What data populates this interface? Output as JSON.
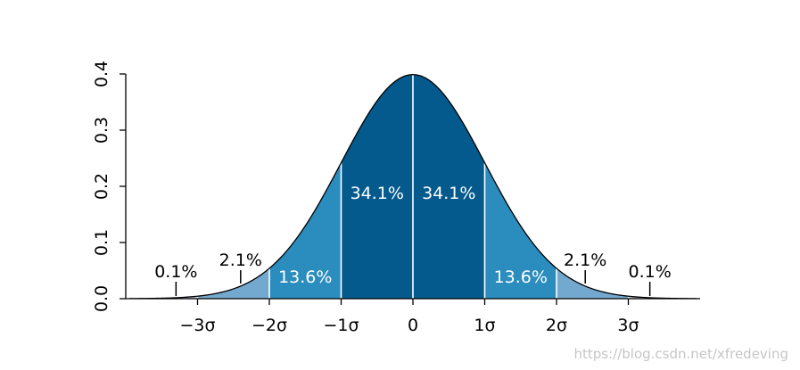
{
  "chart_data": {
    "type": "area",
    "title": "",
    "xlabel": "",
    "ylabel": "",
    "xlim": [
      -3.95,
      3.95
    ],
    "ylim": [
      0,
      0.4
    ],
    "grid": false,
    "y_ticks": [
      {
        "value": 0.0,
        "label": "0.0"
      },
      {
        "value": 0.1,
        "label": "0.1"
      },
      {
        "value": 0.2,
        "label": "0.2"
      },
      {
        "value": 0.3,
        "label": "0.3"
      },
      {
        "value": 0.4,
        "label": "0.4"
      }
    ],
    "x_ticks": [
      {
        "value": -3,
        "label": "−3σ"
      },
      {
        "value": -2,
        "label": "−2σ"
      },
      {
        "value": -1,
        "label": "−1σ"
      },
      {
        "value": 0,
        "label": "0"
      },
      {
        "value": 1,
        "label": "1σ"
      },
      {
        "value": 2,
        "label": "2σ"
      },
      {
        "value": 3,
        "label": "3σ"
      }
    ],
    "regions": [
      {
        "from": -3,
        "to": -2,
        "label": "2.1%",
        "color": "#74a9cf",
        "label_on_curve": false,
        "marker_x": -2.4
      },
      {
        "from": -2,
        "to": -1,
        "label": "13.6%",
        "color": "#2b8cbe",
        "label_on_curve": true
      },
      {
        "from": -1,
        "to": 0,
        "label": "34.1%",
        "color": "#045a8d",
        "label_on_curve": true
      },
      {
        "from": 0,
        "to": 1,
        "label": "34.1%",
        "color": "#045a8d",
        "label_on_curve": true
      },
      {
        "from": 1,
        "to": 2,
        "label": "13.6%",
        "color": "#2b8cbe",
        "label_on_curve": true
      },
      {
        "from": 2,
        "to": 3,
        "label": "2.1%",
        "color": "#74a9cf",
        "label_on_curve": false,
        "marker_x": 2.4
      }
    ],
    "tails": [
      {
        "side": "left",
        "label": "0.1%",
        "color": "#bdc9e1",
        "marker_x": -3.3
      },
      {
        "side": "right",
        "label": "0.1%",
        "color": "#bdc9e1",
        "marker_x": 3.3
      }
    ]
  },
  "watermark": "https://blog.csdn.net/xfredeving"
}
